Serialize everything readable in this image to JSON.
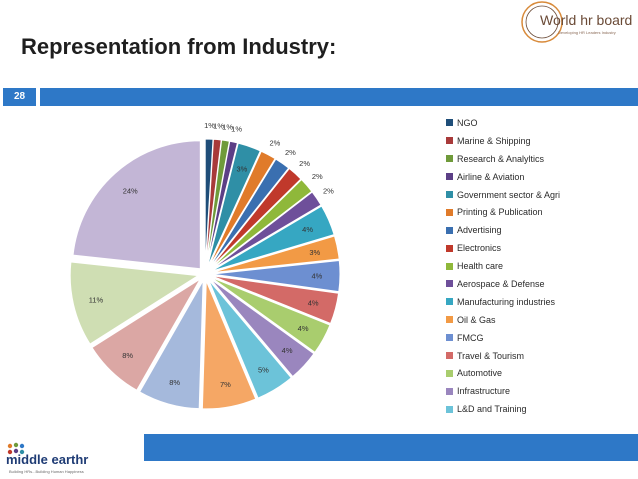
{
  "slide": {
    "title": "Representation from Industry:",
    "page_number": "28"
  },
  "header_logo": {
    "name": "World hr board",
    "tagline": "Developing HR Leaders Industry"
  },
  "footer_logo": {
    "name": "middle earthr",
    "tagline": "Building HRs...Building Human Happiness"
  },
  "colors": {
    "accent_bar": "#2e78c7"
  },
  "chart_data": {
    "type": "pie",
    "legend_position": "right",
    "label_format": "percent",
    "exploded": true,
    "slices": [
      {
        "label": "NGO",
        "value": 1,
        "display": "1%",
        "color": "#1f4e79"
      },
      {
        "label": "Marine & Shipping",
        "value": 1,
        "display": "1%",
        "color": "#a83a3a"
      },
      {
        "label": "Research & Analyltics",
        "value": 1,
        "display": "1%",
        "color": "#6f9a3a"
      },
      {
        "label": "Airline & Aviation",
        "value": 1,
        "display": "1%",
        "color": "#5c3f86"
      },
      {
        "label": "Government sector & Agri",
        "value": 3,
        "display": "3%",
        "color": "#2f8fa6"
      },
      {
        "label": "Printing & Publication",
        "value": 2,
        "display": "2%",
        "color": "#e07b2a"
      },
      {
        "label": "Advertising",
        "value": 2,
        "display": "2%",
        "color": "#3a6fb0"
      },
      {
        "label": "Electronics",
        "value": 2,
        "display": "2%",
        "color": "#c0392b"
      },
      {
        "label": "Health care",
        "value": 2,
        "display": "2%",
        "color": "#8fb83a"
      },
      {
        "label": "Aerospace & Defense",
        "value": 2,
        "display": "2%",
        "color": "#6e4f9a"
      },
      {
        "label": "Manufacturing industries",
        "value": 4,
        "display": "4%",
        "color": "#36a7c2"
      },
      {
        "label": "Oil & Gas",
        "value": 3,
        "display": "3%",
        "color": "#f29a45"
      },
      {
        "label": "FMCG",
        "value": 4,
        "display": "4%",
        "color": "#6d8fd1"
      },
      {
        "label": "Travel & Tourism",
        "value": 4,
        "display": "4%",
        "color": "#d36a67"
      },
      {
        "label": "Automotive",
        "value": 4,
        "display": "4%",
        "color": "#a9cd6e"
      },
      {
        "label": "Infrastructure",
        "value": 4,
        "display": "4%",
        "color": "#9a86be"
      },
      {
        "label": "L&D and Training",
        "value": 5,
        "display": "5%",
        "color": "#6cc3d9"
      },
      {
        "label": "",
        "value": 7,
        "display": "7%",
        "color": "#f5a765"
      },
      {
        "label": "",
        "value": 8,
        "display": "8%",
        "color": "#a5b9dc"
      },
      {
        "label": "",
        "value": 8,
        "display": "8%",
        "color": "#dba7a4"
      },
      {
        "label": "",
        "value": 11,
        "display": "11%",
        "color": "#cfdeb3"
      },
      {
        "label": "",
        "value": 24,
        "display": "24%",
        "color": "#c3b6d6"
      }
    ]
  }
}
